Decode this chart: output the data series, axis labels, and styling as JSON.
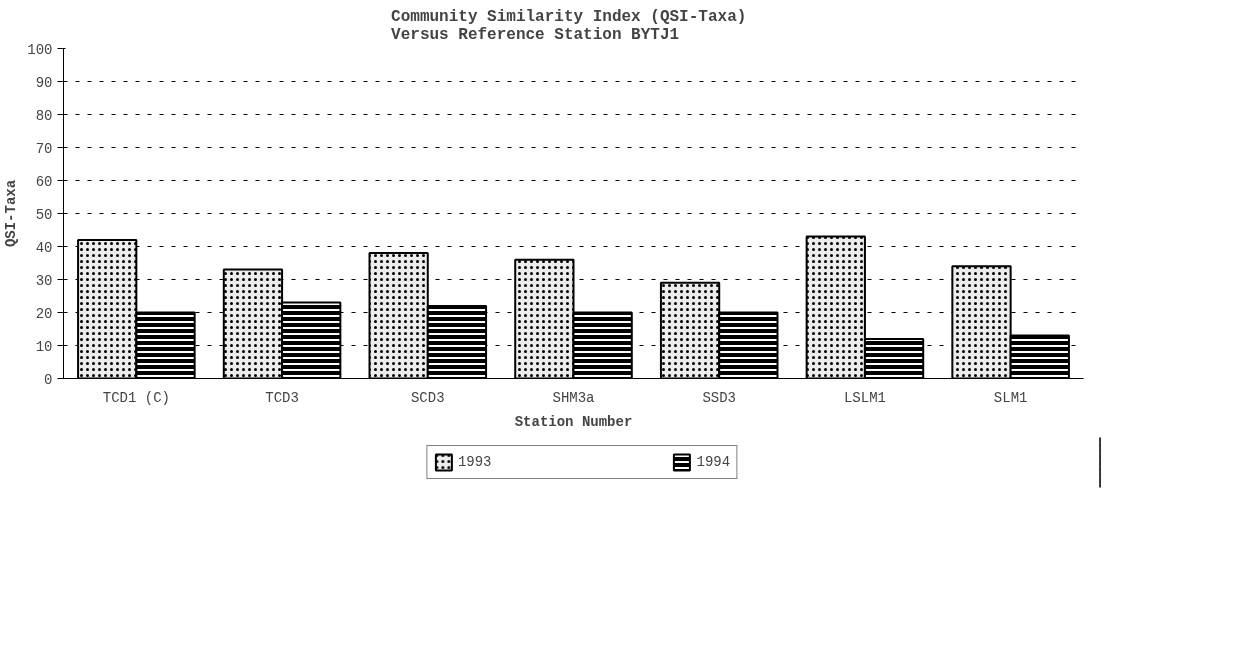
{
  "chart_data": {
    "type": "bar",
    "title": "Community Similarity Index  (QSI-Taxa)\nVersus Reference Station BYTJ1",
    "xlabel": "Station Number",
    "ylabel": "QSI-Taxa",
    "categories": [
      "TCD1 (C)",
      "TCD3",
      "SCD3",
      "SHM3a",
      "SSD3",
      "LSLM1",
      "SLM1"
    ],
    "series": [
      {
        "name": "1993",
        "color": "#ececec",
        "values": [
          42,
          33,
          38,
          36,
          29,
          43,
          34
        ]
      },
      {
        "name": "1994",
        "color": "#000000",
        "values": [
          20,
          23,
          22,
          20,
          20,
          12,
          13
        ]
      }
    ],
    "ylim": [
      0,
      100
    ],
    "yticks": [
      0,
      10,
      20,
      30,
      40,
      50,
      60,
      70,
      80,
      90,
      100
    ],
    "grid": "y",
    "legend": "bottom"
  }
}
